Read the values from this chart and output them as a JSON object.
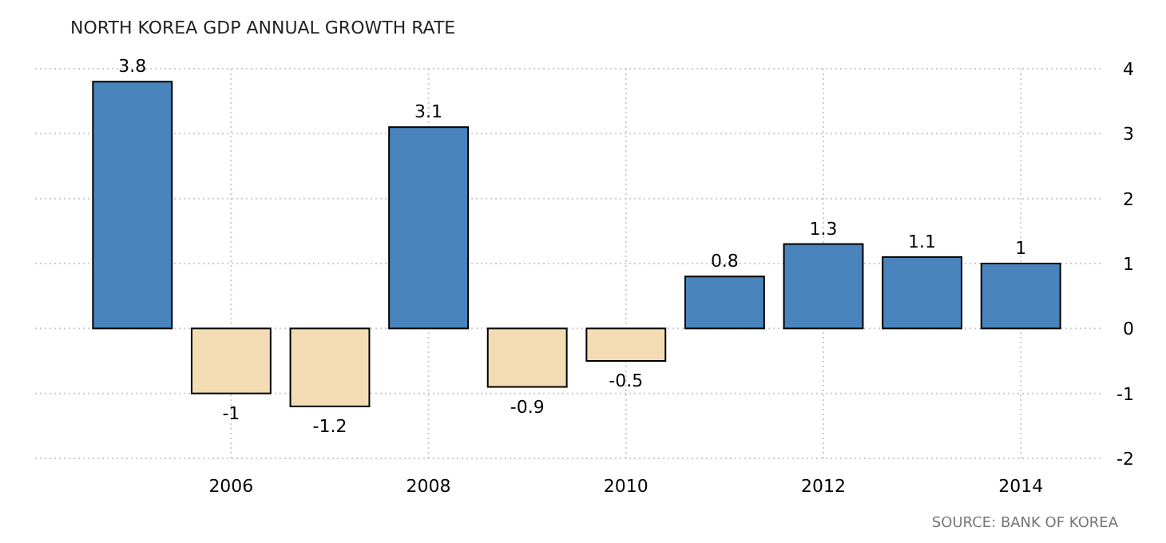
{
  "chart_data": {
    "type": "bar",
    "title": "NORTH KOREA GDP ANNUAL GROWTH RATE",
    "categories": [
      null,
      "2006",
      null,
      "2008",
      null,
      "2010",
      null,
      "2012",
      null,
      "2014"
    ],
    "values": [
      3.8,
      -1,
      -1.2,
      3.1,
      -0.9,
      -0.5,
      0.8,
      1.3,
      1.1,
      1
    ],
    "colors": [
      "#4a84bd",
      "#f3dcb4",
      "#f3dcb4",
      "#4a84bd",
      "#f3dcb4",
      "#f3dcb4",
      "#4a84bd",
      "#4a84bd",
      "#4a84bd",
      "#4a84bd"
    ],
    "ylim": [
      -2,
      4
    ],
    "yticks": [
      -2,
      -1,
      0,
      1,
      2,
      3,
      4
    ],
    "grid": true,
    "data_labels": true,
    "annotations": [
      "SOURCE: BANK OF KOREA"
    ]
  }
}
